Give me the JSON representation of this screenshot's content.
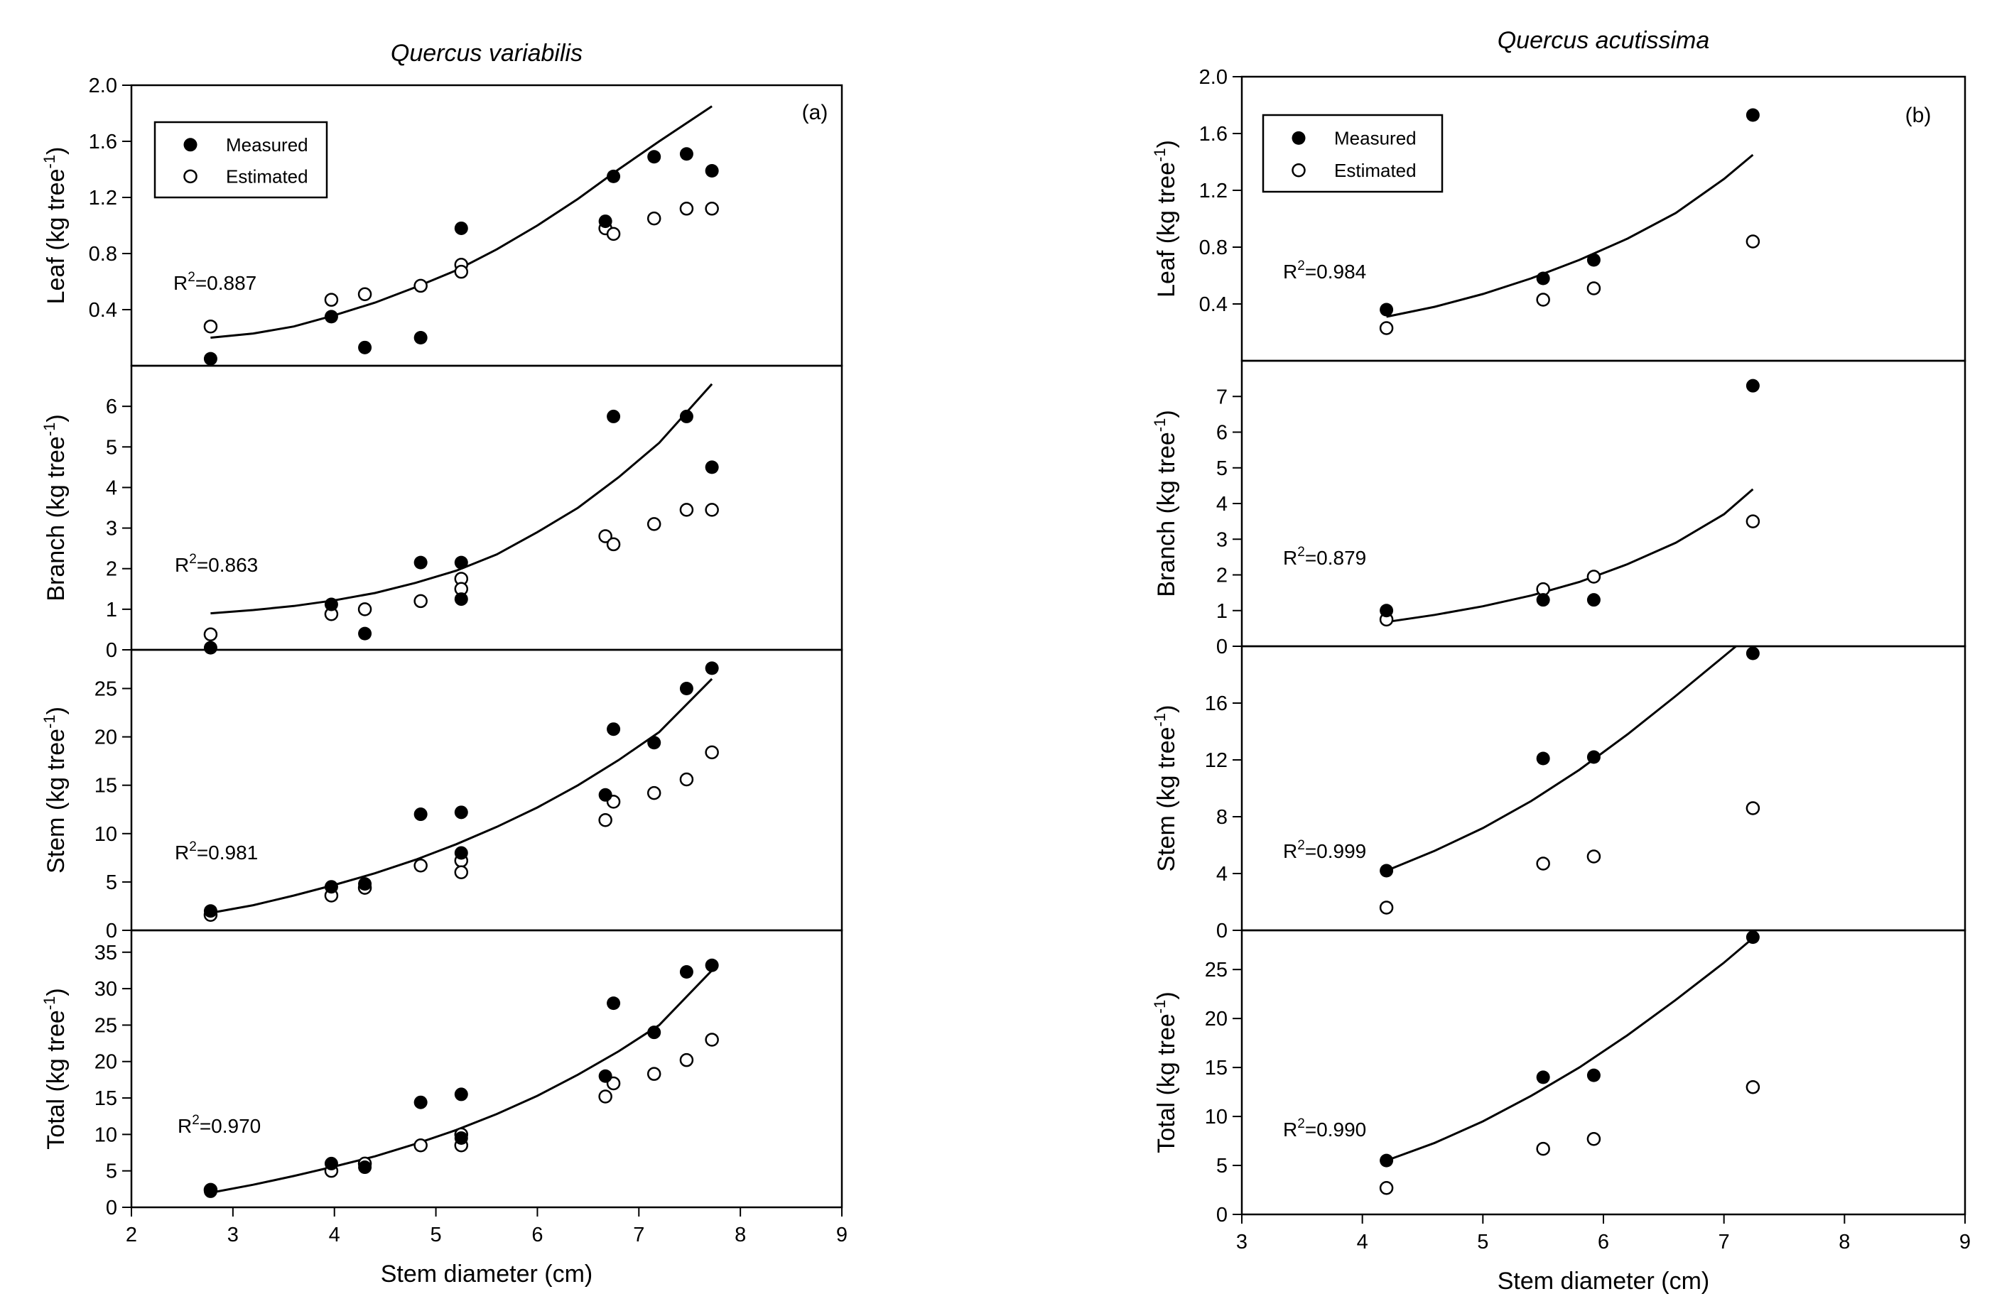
{
  "chart_data": [
    {
      "type": "scatter",
      "title": "Quercus variabilis",
      "panel_tag": "(a)",
      "xlabel": "Stem diameter (cm)",
      "xlim": [
        2,
        9
      ],
      "xticks": [
        2,
        3,
        4,
        5,
        6,
        7,
        8,
        9
      ],
      "legend": {
        "position": "top-left",
        "entries": [
          "Measured",
          "Estimated"
        ]
      },
      "subplots": [
        {
          "ylabel": "Leaf (kg tree",
          "ylim": [
            0,
            2.0
          ],
          "yticks": [
            0.4,
            0.8,
            1.2,
            1.6,
            2.0
          ],
          "yticklabels": [
            "0.4",
            "0.8",
            "1.2",
            "1.6",
            "2.0"
          ],
          "r2": "0.887",
          "measured_x": [
            2.78,
            3.97,
            4.3,
            4.85,
            5.25,
            6.67,
            6.75,
            7.15,
            7.47,
            7.72
          ],
          "measured_y": [
            0.05,
            0.35,
            0.13,
            0.2,
            0.98,
            1.03,
            1.35,
            1.49,
            1.51,
            1.39
          ],
          "estimated_x": [
            2.78,
            3.97,
            4.3,
            4.85,
            5.25,
            5.25,
            6.67,
            6.75,
            7.15,
            7.47,
            7.72
          ],
          "estimated_y": [
            0.28,
            0.47,
            0.51,
            0.57,
            0.72,
            0.67,
            0.98,
            0.94,
            1.05,
            1.12,
            1.12
          ],
          "fit_x": [
            2.78,
            3.2,
            3.6,
            4.0,
            4.4,
            4.8,
            5.2,
            5.6,
            6.0,
            6.4,
            6.8,
            7.2,
            7.72
          ],
          "fit_y": [
            0.2,
            0.23,
            0.28,
            0.36,
            0.45,
            0.56,
            0.68,
            0.83,
            1.0,
            1.19,
            1.4,
            1.6,
            1.85
          ]
        },
        {
          "ylabel": "Branch (kg tree",
          "ylim": [
            0,
            7
          ],
          "yticks": [
            0,
            1,
            2,
            3,
            4,
            5,
            6
          ],
          "yticklabels": [
            "0",
            "1",
            "2",
            "3",
            "4",
            "5",
            "6"
          ],
          "r2": "0.863",
          "measured_x": [
            2.78,
            3.97,
            4.3,
            4.85,
            5.25,
            5.25,
            6.75,
            7.47,
            7.72
          ],
          "measured_y": [
            0.05,
            1.12,
            0.4,
            2.15,
            2.15,
            1.25,
            5.75,
            5.75,
            4.5
          ],
          "estimated_x": [
            2.78,
            3.97,
            4.3,
            4.85,
            5.25,
            5.25,
            6.67,
            6.75,
            7.15,
            7.47,
            7.72
          ],
          "estimated_y": [
            0.38,
            0.88,
            1.0,
            1.2,
            1.75,
            1.5,
            2.8,
            2.6,
            3.1,
            3.45,
            3.45
          ],
          "fit_x": [
            2.78,
            3.2,
            3.6,
            4.0,
            4.4,
            4.8,
            5.2,
            5.6,
            6.0,
            6.4,
            6.8,
            7.2,
            7.72
          ],
          "fit_y": [
            0.9,
            0.98,
            1.08,
            1.22,
            1.4,
            1.65,
            1.95,
            2.35,
            2.9,
            3.5,
            4.25,
            5.1,
            6.55
          ]
        },
        {
          "ylabel": "Stem (kg tree",
          "ylim": [
            0,
            29
          ],
          "yticks": [
            0,
            5,
            10,
            15,
            20,
            25
          ],
          "yticklabels": [
            "0",
            "5",
            "10",
            "15",
            "20",
            "25"
          ],
          "r2": "0.981",
          "measured_x": [
            2.78,
            3.97,
            4.3,
            4.85,
            5.25,
            5.25,
            6.67,
            6.75,
            7.15,
            7.47,
            7.72
          ],
          "measured_y": [
            2.0,
            4.5,
            4.8,
            12.0,
            12.2,
            8.0,
            14.0,
            20.8,
            19.4,
            25.0,
            27.1
          ],
          "estimated_x": [
            2.78,
            3.97,
            4.3,
            4.85,
            5.25,
            5.25,
            6.67,
            6.75,
            7.15,
            7.47,
            7.72
          ],
          "estimated_y": [
            1.6,
            3.6,
            4.4,
            6.7,
            7.2,
            6.0,
            11.4,
            13.3,
            14.2,
            15.6,
            18.4
          ],
          "fit_x": [
            2.78,
            3.2,
            3.6,
            4.0,
            4.4,
            4.8,
            5.2,
            5.6,
            6.0,
            6.4,
            6.8,
            7.2,
            7.72
          ],
          "fit_y": [
            1.8,
            2.6,
            3.6,
            4.7,
            5.9,
            7.3,
            8.9,
            10.7,
            12.7,
            15.0,
            17.6,
            20.5,
            26.0
          ]
        },
        {
          "ylabel": "Total (kg tree",
          "ylim": [
            0,
            38
          ],
          "yticks": [
            0,
            5,
            10,
            15,
            20,
            25,
            30,
            35
          ],
          "yticklabels": [
            "0",
            "5",
            "10",
            "15",
            "20",
            "25",
            "30",
            "35"
          ],
          "r2": "0.970",
          "measured_x": [
            2.78,
            3.97,
            4.3,
            4.85,
            5.25,
            5.25,
            6.67,
            6.75,
            7.15,
            7.47,
            7.72
          ],
          "measured_y": [
            2.2,
            6.0,
            5.5,
            14.4,
            15.5,
            9.5,
            18.0,
            28.0,
            24.0,
            32.3,
            33.2
          ],
          "estimated_x": [
            2.78,
            3.97,
            4.3,
            4.85,
            5.25,
            5.25,
            6.67,
            6.75,
            7.15,
            7.47,
            7.72
          ],
          "estimated_y": [
            2.4,
            5.0,
            6.0,
            8.5,
            10.0,
            8.5,
            15.2,
            17.0,
            18.3,
            20.2,
            23.0
          ],
          "fit_x": [
            2.78,
            3.2,
            3.6,
            4.0,
            4.4,
            4.8,
            5.2,
            5.6,
            6.0,
            6.4,
            6.8,
            7.2,
            7.72
          ],
          "fit_y": [
            2.0,
            3.1,
            4.3,
            5.6,
            7.0,
            8.7,
            10.6,
            12.8,
            15.3,
            18.2,
            21.4,
            25.0,
            32.5
          ]
        }
      ]
    },
    {
      "type": "scatter",
      "title": "Quercus acutissima",
      "panel_tag": "(b)",
      "xlabel": "Stem diameter (cm)",
      "xlim": [
        3,
        9
      ],
      "xticks": [
        3,
        4,
        5,
        6,
        7,
        8,
        9
      ],
      "legend": {
        "position": "top-left",
        "entries": [
          "Measured",
          "Estimated"
        ]
      },
      "subplots": [
        {
          "ylabel": "Leaf (kg tree",
          "ylim": [
            0,
            2.0
          ],
          "yticks": [
            0.4,
            0.8,
            1.2,
            1.6,
            2.0
          ],
          "yticklabels": [
            "0.4",
            "0.8",
            "1.2",
            "1.6",
            "2.0"
          ],
          "r2": "0.984",
          "measured_x": [
            4.2,
            5.5,
            5.92,
            7.24
          ],
          "measured_y": [
            0.36,
            0.58,
            0.71,
            1.73
          ],
          "estimated_x": [
            4.2,
            5.5,
            5.92,
            7.24
          ],
          "estimated_y": [
            0.23,
            0.43,
            0.51,
            0.84
          ],
          "fit_x": [
            4.2,
            4.6,
            5.0,
            5.4,
            5.8,
            6.2,
            6.6,
            7.0,
            7.24
          ],
          "fit_y": [
            0.31,
            0.38,
            0.47,
            0.58,
            0.71,
            0.86,
            1.04,
            1.28,
            1.45
          ]
        },
        {
          "ylabel": "Branch (kg tree",
          "ylim": [
            0,
            8
          ],
          "yticks": [
            0,
            1,
            2,
            3,
            4,
            5,
            6,
            7
          ],
          "yticklabels": [
            "0",
            "1",
            "2",
            "3",
            "4",
            "5",
            "6",
            "7"
          ],
          "r2": "0.879",
          "measured_x": [
            4.2,
            5.5,
            5.92,
            7.24
          ],
          "measured_y": [
            1.0,
            1.3,
            1.3,
            7.3
          ],
          "estimated_x": [
            4.2,
            5.5,
            5.92,
            7.24
          ],
          "estimated_y": [
            0.75,
            1.6,
            1.95,
            3.5
          ],
          "fit_x": [
            4.2,
            4.6,
            5.0,
            5.4,
            5.8,
            6.2,
            6.6,
            7.0,
            7.24
          ],
          "fit_y": [
            0.68,
            0.88,
            1.12,
            1.42,
            1.8,
            2.3,
            2.9,
            3.7,
            4.4
          ]
        },
        {
          "ylabel": "Stem (kg tree",
          "ylim": [
            0,
            20
          ],
          "yticks": [
            0,
            4,
            8,
            12,
            16
          ],
          "yticklabels": [
            "0",
            "4",
            "8",
            "12",
            "16"
          ],
          "r2": "0.999",
          "measured_x": [
            4.2,
            5.5,
            5.92,
            7.24
          ],
          "measured_y": [
            4.2,
            12.1,
            12.2,
            19.5
          ],
          "estimated_x": [
            4.2,
            5.5,
            5.92,
            7.24
          ],
          "estimated_y": [
            1.6,
            4.7,
            5.2,
            8.6
          ],
          "fit_x": [
            4.2,
            4.6,
            5.0,
            5.4,
            5.8,
            6.2,
            6.6,
            7.0,
            7.1
          ],
          "fit_y": [
            4.2,
            5.6,
            7.2,
            9.1,
            11.3,
            13.8,
            16.5,
            19.3,
            20.0
          ]
        },
        {
          "ylabel": "Total (kg tree",
          "ylim": [
            0,
            29
          ],
          "yticks": [
            0,
            5,
            10,
            15,
            20,
            25
          ],
          "yticklabels": [
            "0",
            "5",
            "10",
            "15",
            "20",
            "25"
          ],
          "r2": "0.990",
          "measured_x": [
            4.2,
            5.5,
            5.92,
            7.24
          ],
          "measured_y": [
            5.5,
            14.0,
            14.2,
            28.3
          ],
          "estimated_x": [
            4.2,
            5.5,
            5.92,
            7.24
          ],
          "estimated_y": [
            2.7,
            6.7,
            7.7,
            13.0
          ],
          "fit_x": [
            4.2,
            4.6,
            5.0,
            5.4,
            5.8,
            6.2,
            6.6,
            7.0,
            7.24
          ],
          "fit_y": [
            5.5,
            7.3,
            9.5,
            12.1,
            15.0,
            18.3,
            21.9,
            25.7,
            28.2
          ]
        }
      ]
    }
  ]
}
